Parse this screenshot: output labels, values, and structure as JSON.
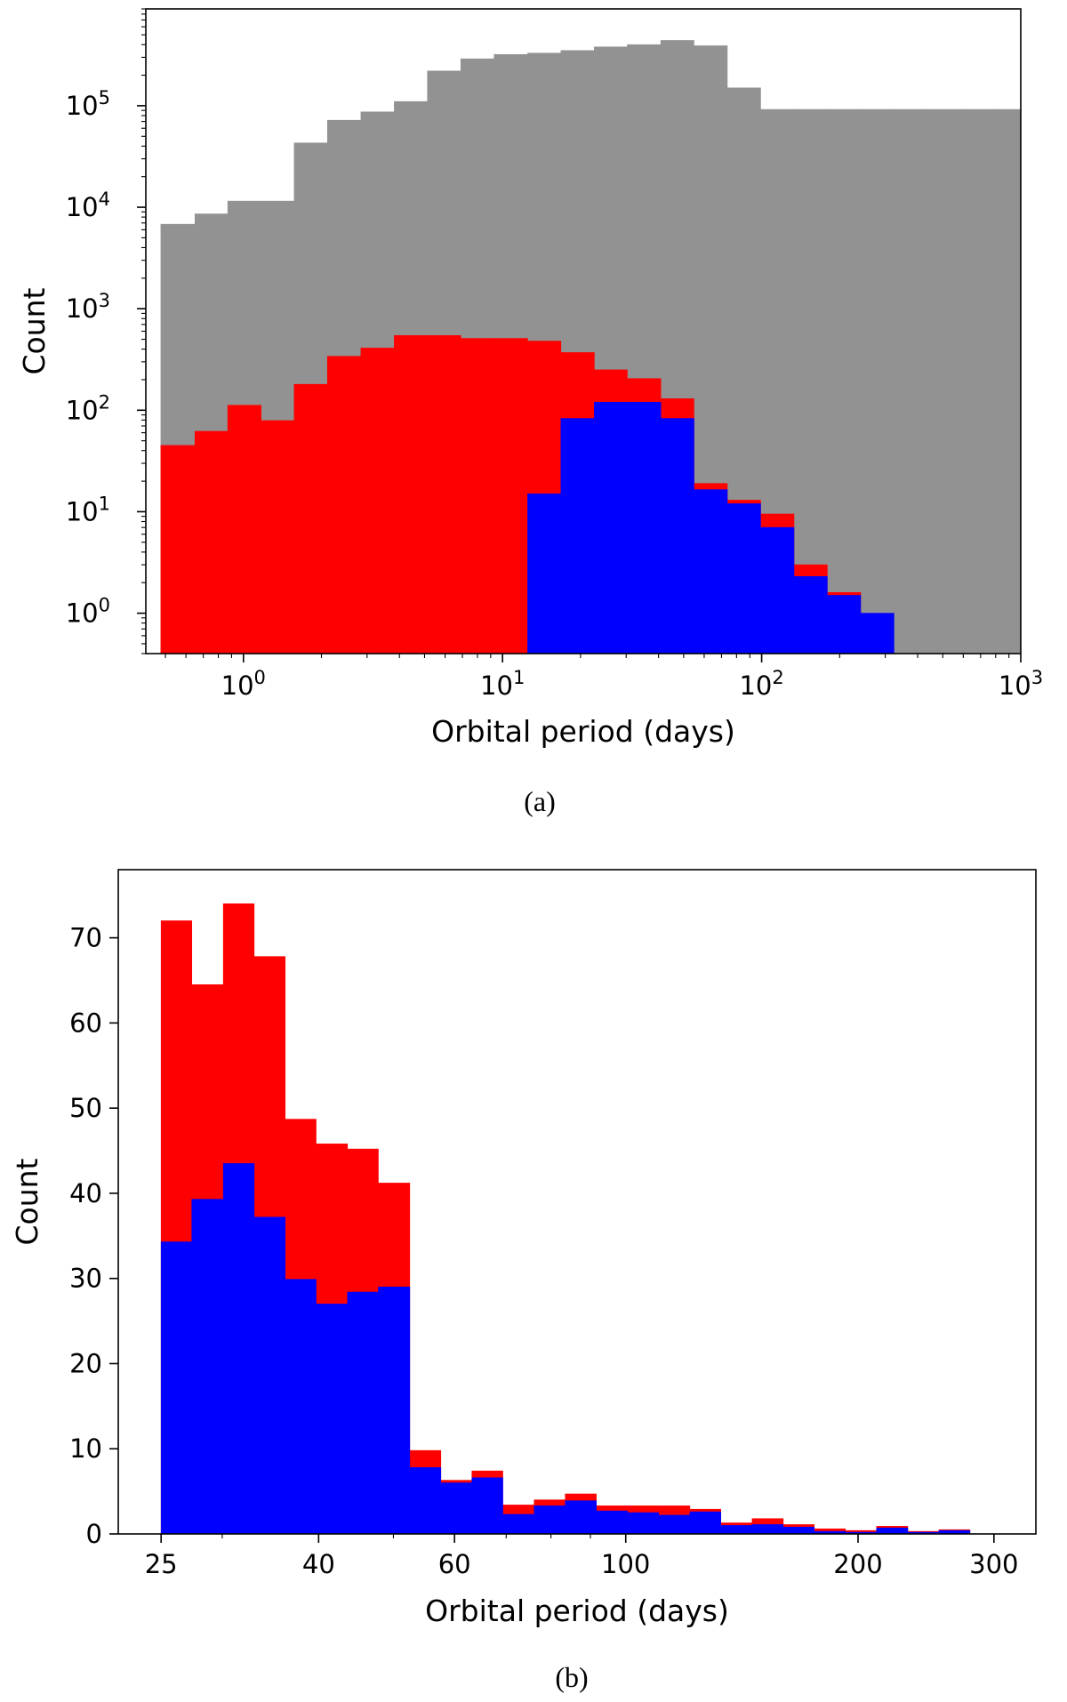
{
  "chart_data": [
    {
      "type": "bar",
      "subplot_label": "(a)",
      "xlabel": "Orbital period (days)",
      "ylabel": "Count",
      "xscale": "log",
      "yscale": "log",
      "xlim": [
        0.42,
        1000
      ],
      "ylim": [
        0.4,
        900000
      ],
      "x_ticks": [
        {
          "base": "10",
          "exp": "0",
          "value": 1
        },
        {
          "base": "10",
          "exp": "1",
          "value": 10
        },
        {
          "base": "10",
          "exp": "2",
          "value": 100
        },
        {
          "base": "10",
          "exp": "3",
          "value": 1000
        }
      ],
      "y_ticks": [
        {
          "base": "10",
          "exp": "0",
          "value": 1
        },
        {
          "base": "10",
          "exp": "1",
          "value": 10
        },
        {
          "base": "10",
          "exp": "2",
          "value": 100
        },
        {
          "base": "10",
          "exp": "3",
          "value": 1000
        },
        {
          "base": "10",
          "exp": "4",
          "value": 10000
        },
        {
          "base": "10",
          "exp": "5",
          "value": 100000
        }
      ],
      "bin_edges": [
        0.48,
        0.65,
        0.87,
        1.17,
        1.57,
        2.11,
        2.84,
        3.82,
        5.13,
        6.9,
        9.28,
        12.5,
        16.8,
        22.6,
        30.3,
        40.8,
        54.8,
        73.7,
        99.1,
        133.3,
        179.2,
        241,
        324,
        436,
        586,
        788,
        1000
      ],
      "series": [
        {
          "color": "#929292",
          "values": [
            6800,
            8600,
            11500,
            11500,
            43000,
            72000,
            87000,
            110000,
            220000,
            290000,
            320000,
            330000,
            350000,
            380000,
            400000,
            440000,
            390000,
            150000,
            92000,
            92000,
            92000,
            92000,
            92000,
            92000,
            92000,
            92000
          ]
        },
        {
          "color": "#ff0000",
          "values": [
            45,
            62,
            112,
            79,
            180,
            340,
            410,
            545,
            545,
            510,
            510,
            480,
            370,
            250,
            205,
            130,
            19,
            13,
            9.5,
            3,
            1.6,
            0,
            0,
            0,
            0,
            0
          ]
        },
        {
          "color": "#0000ff",
          "values": [
            0,
            0,
            0,
            0,
            0,
            0,
            0,
            0,
            0,
            0,
            0,
            15,
            83,
            120,
            120,
            83,
            16.5,
            12,
            7,
            2.3,
            1.5,
            1,
            0,
            0,
            0,
            0
          ]
        }
      ]
    },
    {
      "type": "bar",
      "subplot_label": "(b)",
      "xlabel": "Orbital period (days)",
      "ylabel": "Count",
      "xscale": "log",
      "xlim": [
        22,
        340
      ],
      "ylim": [
        0,
        78
      ],
      "x_ticks": [
        25,
        40,
        60,
        100,
        200,
        300
      ],
      "y_ticks": [
        0,
        10,
        20,
        30,
        40,
        50,
        60,
        70
      ],
      "bin_edges": [
        25,
        27.4,
        30.1,
        33,
        36.2,
        39.7,
        43.6,
        47.8,
        52.5,
        57.6,
        63.2,
        69.3,
        76.1,
        83.5,
        91.6,
        100.5,
        110.3,
        121.1,
        132.8,
        145.8,
        160,
        175.5,
        192.6,
        211.4,
        232,
        254.6,
        279.3
      ],
      "series": [
        {
          "color": "#ff0000",
          "values": [
            72,
            64.5,
            74,
            67.8,
            48.7,
            45.8,
            45.2,
            41.2,
            9.8,
            6.3,
            7.4,
            3.4,
            4,
            4.7,
            3.3,
            3.3,
            3.3,
            2.9,
            1.3,
            1.8,
            1.1,
            0.6,
            0.4,
            0.9,
            0.3,
            0.5
          ]
        },
        {
          "color": "#0000ff",
          "values": [
            34.3,
            39.3,
            43.5,
            37.2,
            29.9,
            27,
            28.4,
            29,
            7.8,
            6,
            6.6,
            2.3,
            3.3,
            3.9,
            2.7,
            2.5,
            2.2,
            2.6,
            1,
            1.1,
            0.8,
            0.3,
            0.2,
            0.7,
            0.2,
            0.4
          ]
        }
      ]
    }
  ]
}
